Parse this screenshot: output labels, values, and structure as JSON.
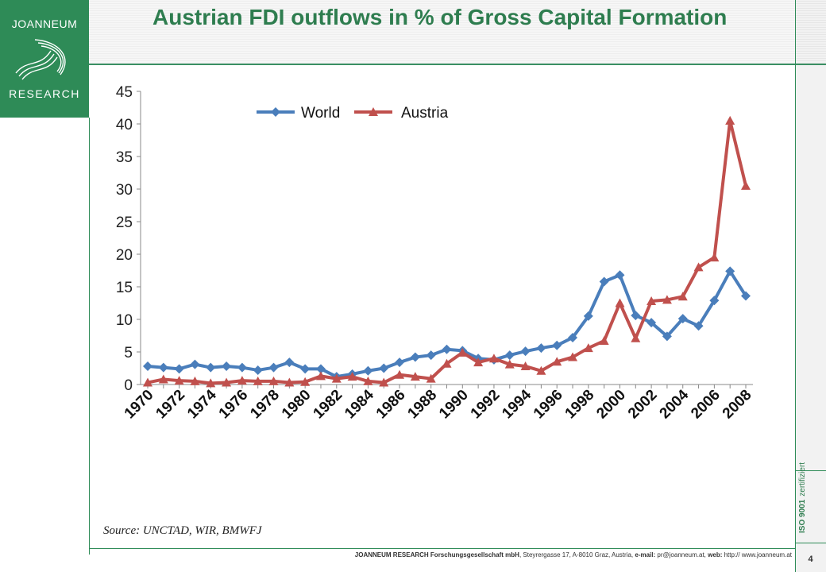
{
  "branding": {
    "logo_top": "JOANNEUM",
    "logo_bottom": "RESEARCH",
    "brand_color": "#2e8b57",
    "title_color": "#2e7d4f"
  },
  "slide": {
    "title": "Austrian FDI outflows in % of Gross Capital Formation",
    "source": "Source: UNCTAD, WIR, BMWFJ",
    "page_number": "4"
  },
  "footer": {
    "company": "JOANNEUM RESEARCH Forschungsgesellschaft mbH",
    "address": ", Steyrergasse 17, A-8010 Graz, Austria,",
    "email_label": "e-mail:",
    "email": "pr@joanneum.at,",
    "web_label": "web:",
    "web": "http:// www.joanneum.at"
  },
  "iso": {
    "label": "ISO 9001",
    "status": "zertifiziert"
  },
  "chart_data": {
    "type": "line",
    "ylim": [
      0,
      45
    ],
    "yticks": [
      0,
      5,
      10,
      15,
      20,
      25,
      30,
      35,
      40,
      45
    ],
    "x": [
      1970,
      1971,
      1972,
      1973,
      1974,
      1975,
      1976,
      1977,
      1978,
      1979,
      1980,
      1981,
      1982,
      1983,
      1984,
      1985,
      1986,
      1987,
      1988,
      1989,
      1990,
      1991,
      1992,
      1993,
      1994,
      1995,
      1996,
      1997,
      1998,
      1999,
      2000,
      2001,
      2002,
      2003,
      2004,
      2005,
      2006,
      2007,
      2008
    ],
    "xtick_labels": [
      "1970",
      "1972",
      "1974",
      "1976",
      "1978",
      "1980",
      "1982",
      "1984",
      "1986",
      "1988",
      "1990",
      "1992",
      "1994",
      "1996",
      "1998",
      "2000",
      "2002",
      "2004",
      "2006",
      "2008"
    ],
    "legend_position": "top",
    "grid": false,
    "series": [
      {
        "name": "World",
        "color": "#4a7ebb",
        "marker": "diamond",
        "values": [
          2.8,
          2.6,
          2.4,
          3.1,
          2.6,
          2.8,
          2.6,
          2.2,
          2.6,
          3.4,
          2.4,
          2.4,
          1.2,
          1.6,
          2.1,
          2.5,
          3.4,
          4.2,
          4.5,
          5.4,
          5.2,
          4.0,
          3.8,
          4.5,
          5.1,
          5.6,
          6.0,
          7.2,
          10.5,
          15.8,
          16.8,
          10.6,
          9.5,
          7.4,
          10.1,
          9.0,
          12.9,
          17.4,
          13.6
        ]
      },
      {
        "name": "Austria",
        "color": "#c0504d",
        "marker": "triangle",
        "values": [
          0.3,
          0.8,
          0.6,
          0.5,
          0.2,
          0.3,
          0.6,
          0.5,
          0.5,
          0.3,
          0.4,
          1.3,
          0.9,
          1.2,
          0.5,
          0.3,
          1.5,
          1.2,
          0.9,
          3.2,
          4.9,
          3.4,
          4.0,
          3.1,
          2.8,
          2.1,
          3.5,
          4.2,
          5.6,
          6.7,
          12.5,
          7.1,
          12.8,
          13.0,
          13.5,
          18.0,
          19.5,
          40.5,
          30.5
        ]
      }
    ]
  }
}
